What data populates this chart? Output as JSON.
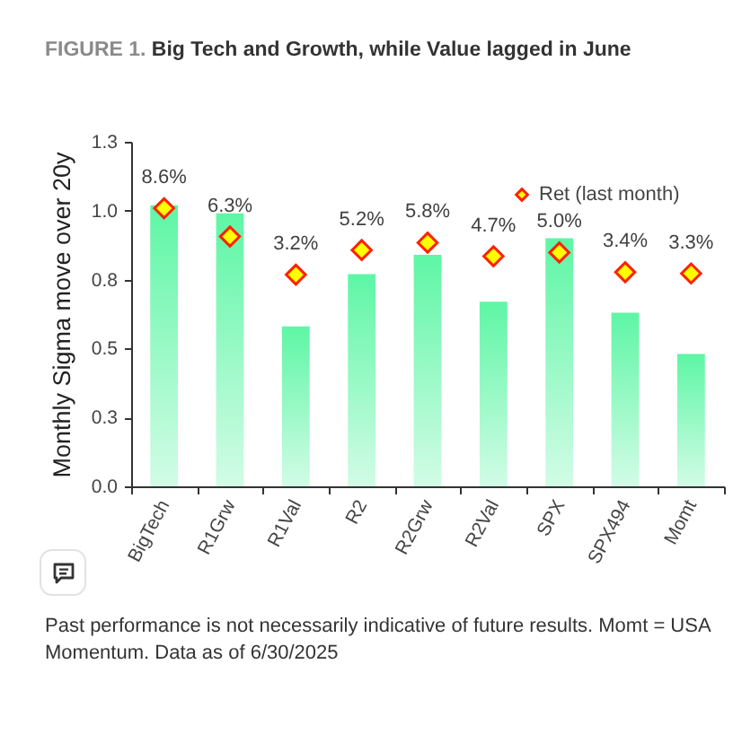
{
  "chart_data": {
    "type": "bar",
    "title": "FIGURE 1. Big Tech and Growth, while Value lagged in June",
    "ylabel": "Monthly Sigma move over 20y",
    "categories": [
      "BigTech",
      "R1Grw",
      "R1Val",
      "R2",
      "R2Grw",
      "R2Val",
      "SPX",
      "SPX494",
      "Momt"
    ],
    "series": [
      {
        "color": "#5ef6a5",
        "values": [
          1.02,
          0.99,
          0.58,
          0.77,
          0.84,
          0.67,
          0.9,
          0.63,
          0.48
        ]
      },
      {
        "type": "scatter",
        "name": "Ret (last month)",
        "color": "#ffff00",
        "axis": "y2",
        "values": [
          8.6,
          6.3,
          3.2,
          5.2,
          5.8,
          4.7,
          5.0,
          3.4,
          3.3
        ],
        "value_labels": [
          "8.6%",
          "6.3%",
          "3.2%",
          "5.2%",
          "5.8%",
          "4.7%",
          "5.0%",
          "3.4%",
          "3.3%"
        ]
      }
    ],
    "ylim": [
      0,
      1.25
    ],
    "yticks": [
      {
        "value": 0,
        "label": "0.0"
      },
      {
        "value": 0.25,
        "label": "0.3"
      },
      0.5,
      {
        "value": 0.75,
        "label": "0.8"
      },
      {
        "value": 1,
        "label": "1.0"
      },
      {
        "value": 1.25,
        "label": "1.3"
      }
    ],
    "y2lim": [
      -14,
      14
    ],
    "tick_labels": "xy",
    "marker": "diamond",
    "legend": "top right",
    "annotations": [
      "Past performance is not necessarily indicative of future results. Momt = USA Momentum. Data as of 6/30/2025"
    ]
  }
}
